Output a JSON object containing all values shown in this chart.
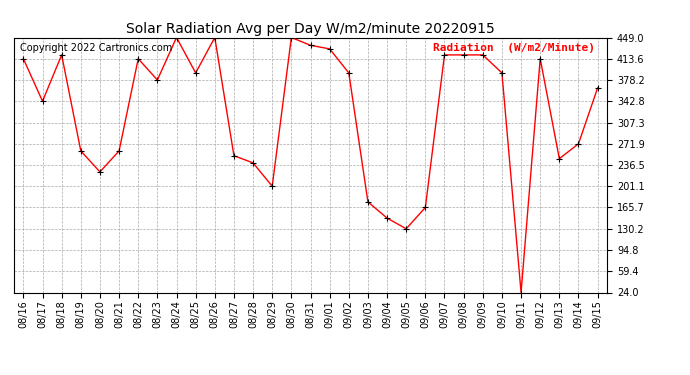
{
  "title": "Solar Radiation Avg per Day W/m2/minute 20220915",
  "copyright": "Copyright 2022 Cartronics.com",
  "legend_label": "Radiation  (W/m2/Minute)",
  "dates": [
    "08/16",
    "08/17",
    "08/18",
    "08/19",
    "08/20",
    "08/21",
    "08/22",
    "08/23",
    "08/24",
    "08/25",
    "08/26",
    "08/27",
    "08/28",
    "08/29",
    "08/30",
    "08/31",
    "09/01",
    "09/02",
    "09/03",
    "09/04",
    "09/05",
    "09/06",
    "09/07",
    "09/08",
    "09/09",
    "09/10",
    "09/11",
    "09/12",
    "09/13",
    "09/14",
    "09/15"
  ],
  "values": [
    413.6,
    342.8,
    420.0,
    260.0,
    225.0,
    260.0,
    413.6,
    378.2,
    449.0,
    390.0,
    449.0,
    252.0,
    240.0,
    201.1,
    449.0,
    436.0,
    430.0,
    390.0,
    175.0,
    148.0,
    130.2,
    165.7,
    420.0,
    420.0,
    420.0,
    390.0,
    24.0,
    413.6,
    247.0,
    271.9,
    365.0
  ],
  "ymin": 24.0,
  "ymax": 449.0,
  "yticks": [
    24.0,
    59.4,
    94.8,
    130.2,
    165.7,
    201.1,
    236.5,
    271.9,
    307.3,
    342.8,
    378.2,
    413.6,
    449.0
  ],
  "line_color": "red",
  "marker_color": "black",
  "background_color": "white",
  "grid_color": "#aaaaaa",
  "title_fontsize": 10,
  "legend_fontsize": 8,
  "tick_fontsize": 7,
  "copyright_fontsize": 7
}
